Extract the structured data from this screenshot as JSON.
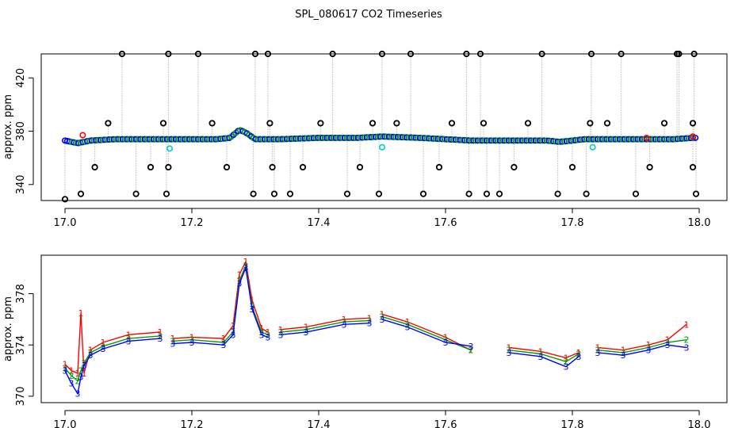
{
  "figure": {
    "title": "SPL_080617  CO2 Timeseries"
  },
  "chart_data": [
    {
      "type": "scatter",
      "panel": "top",
      "ylabel": "approx. ppm",
      "xlabel": "",
      "xlim": [
        17.0,
        18.0
      ],
      "ylim": [
        328,
        438
      ],
      "x_ticks": [
        17.0,
        17.2,
        17.4,
        17.6,
        17.8,
        18.0
      ],
      "x_tick_labels": [
        "17.0",
        "17.2",
        "17.4",
        "17.6",
        "17.8",
        "18.0"
      ],
      "y_ticks": [
        340,
        380,
        420
      ],
      "y_tick_labels": [
        "340",
        "380",
        "420"
      ],
      "marker_colors": {
        "baseline": "#0000ff",
        "secondary": "#00a000",
        "tertiary": "#ff0000",
        "quaternary": "#00cccc",
        "outlier": "#000000"
      },
      "series_baseline": {
        "x": [
          17.0,
          17.02,
          17.04,
          17.08,
          17.12,
          17.16,
          17.2,
          17.24,
          17.26,
          17.275,
          17.285,
          17.3,
          17.32,
          17.34,
          17.4,
          17.46,
          17.5,
          17.56,
          17.6,
          17.64,
          17.66,
          17.7,
          17.76,
          17.78,
          17.8,
          17.82,
          17.84,
          17.9,
          17.96,
          17.99
        ],
        "y": [
          373,
          371,
          373,
          374,
          374,
          374,
          374,
          374,
          375,
          381,
          379,
          374,
          374,
          374,
          375,
          375,
          376,
          375,
          374,
          373,
          373,
          373,
          373,
          372,
          373,
          374,
          374,
          374,
          374,
          375
        ]
      },
      "outliers": {
        "x": [
          17.0,
          17.025,
          17.047,
          17.068,
          17.09,
          17.112,
          17.135,
          17.155,
          17.16,
          17.163,
          17.163,
          17.21,
          17.232,
          17.255,
          17.297,
          17.3,
          17.32,
          17.323,
          17.327,
          17.33,
          17.355,
          17.375,
          17.403,
          17.422,
          17.445,
          17.465,
          17.485,
          17.495,
          17.5,
          17.523,
          17.545,
          17.565,
          17.59,
          17.61,
          17.633,
          17.637,
          17.655,
          17.66,
          17.665,
          17.685,
          17.708,
          17.73,
          17.752,
          17.777,
          17.8,
          17.822,
          17.828,
          17.83,
          17.855,
          17.877,
          17.9,
          17.922,
          17.945,
          17.965,
          17.968,
          17.99,
          17.99,
          17.992,
          17.995
        ],
        "y": [
          329,
          333,
          353,
          386,
          438,
          333,
          353,
          386,
          333,
          353,
          438,
          438,
          386,
          353,
          333,
          438,
          438,
          386,
          353,
          333,
          333,
          353,
          386,
          438,
          333,
          353,
          386,
          333,
          438,
          386,
          438,
          333,
          353,
          386,
          438,
          333,
          438,
          386,
          333,
          333,
          353,
          386,
          438,
          333,
          353,
          333,
          386,
          438,
          386,
          438,
          333,
          353,
          386,
          438,
          438,
          386,
          353,
          438,
          333
        ]
      },
      "highlights": [
        {
          "x": 17.028,
          "y": 377,
          "kind": "tertiary"
        },
        {
          "x": 17.165,
          "y": 367,
          "kind": "quaternary"
        },
        {
          "x": 17.5,
          "y": 368,
          "kind": "quaternary"
        },
        {
          "x": 17.832,
          "y": 368,
          "kind": "quaternary"
        },
        {
          "x": 17.917,
          "y": 375,
          "kind": "tertiary"
        },
        {
          "x": 17.99,
          "y": 376,
          "kind": "tertiary"
        }
      ]
    },
    {
      "type": "line",
      "panel": "bottom",
      "ylabel": "approx. ppm",
      "xlabel": "",
      "xlim": [
        17.0,
        18.0
      ],
      "ylim": [
        369.5,
        381
      ],
      "x_ticks": [
        17.0,
        17.2,
        17.4,
        17.6,
        17.8,
        18.0
      ],
      "x_tick_labels": [
        "17.0",
        "17.2",
        "17.4",
        "17.6",
        "17.8",
        "18.0"
      ],
      "y_ticks": [
        370,
        374,
        378
      ],
      "y_tick_labels": [
        "370",
        "374",
        "378"
      ],
      "series": [
        {
          "name": "1",
          "label": "1",
          "color": "#ff0000",
          "x": [
            17.0,
            17.01,
            17.02,
            17.025,
            17.03,
            17.04,
            17.06,
            17.1,
            17.15,
            17.16,
            17.17,
            17.2,
            17.25,
            17.265,
            17.275,
            17.285,
            17.295,
            17.31,
            17.32,
            17.33,
            17.34,
            17.38,
            17.44,
            17.48,
            17.49,
            17.5,
            17.54,
            17.6,
            17.64,
            17.66,
            17.7,
            17.75,
            17.79,
            17.81,
            17.82,
            17.84,
            17.88,
            17.92,
            17.95,
            17.98
          ],
          "y": [
            372.5,
            372.0,
            371.8,
            376.5,
            371.8,
            373.6,
            374.2,
            374.8,
            375.0,
            null,
            374.5,
            374.6,
            374.5,
            375.5,
            379.5,
            380.5,
            377.5,
            375.3,
            375.0,
            null,
            375.2,
            375.4,
            376.0,
            376.1,
            null,
            376.4,
            375.8,
            374.6,
            373.6,
            null,
            373.8,
            373.5,
            373.0,
            373.4,
            null,
            373.8,
            373.6,
            374.0,
            374.4,
            375.6
          ]
        },
        {
          "name": "2",
          "label": "2",
          "color": "#00a000",
          "x": [
            17.0,
            17.01,
            17.02,
            17.025,
            17.03,
            17.04,
            17.06,
            17.1,
            17.15,
            17.16,
            17.17,
            17.2,
            17.25,
            17.265,
            17.275,
            17.285,
            17.295,
            17.31,
            17.32,
            17.33,
            17.34,
            17.38,
            17.44,
            17.48,
            17.49,
            17.5,
            17.54,
            17.6,
            17.64,
            17.66,
            17.7,
            17.75,
            17.79,
            17.81,
            17.82,
            17.84,
            17.88,
            17.92,
            17.95,
            17.98
          ],
          "y": [
            372.2,
            371.6,
            371.2,
            372.0,
            372.6,
            373.4,
            373.9,
            374.5,
            374.7,
            null,
            374.3,
            374.4,
            374.2,
            375.0,
            379.0,
            380.2,
            377.0,
            375.0,
            374.8,
            null,
            375.0,
            375.2,
            375.8,
            375.9,
            null,
            376.2,
            375.6,
            374.4,
            373.6,
            null,
            373.6,
            373.3,
            372.7,
            373.3,
            null,
            373.6,
            373.4,
            373.8,
            374.2,
            374.4
          ]
        },
        {
          "name": "3",
          "label": "3",
          "color": "#0000ff",
          "x": [
            17.0,
            17.01,
            17.02,
            17.025,
            17.03,
            17.04,
            17.06,
            17.1,
            17.15,
            17.16,
            17.17,
            17.2,
            17.25,
            17.265,
            17.275,
            17.285,
            17.295,
            17.31,
            17.32,
            17.33,
            17.34,
            17.38,
            17.44,
            17.48,
            17.49,
            17.5,
            17.54,
            17.6,
            17.64,
            17.66,
            17.7,
            17.75,
            17.79,
            17.81,
            17.82,
            17.84,
            17.88,
            17.92,
            17.95,
            17.98
          ],
          "y": [
            372.0,
            371.0,
            370.2,
            371.5,
            372.4,
            373.2,
            373.7,
            374.3,
            374.5,
            null,
            374.1,
            374.2,
            374.0,
            374.8,
            378.8,
            380.0,
            376.8,
            374.8,
            374.6,
            null,
            374.8,
            375.0,
            375.6,
            375.7,
            null,
            376.0,
            375.4,
            374.2,
            373.9,
            null,
            373.4,
            373.1,
            372.3,
            373.1,
            null,
            373.4,
            373.2,
            373.6,
            374.0,
            373.8
          ]
        }
      ]
    }
  ]
}
